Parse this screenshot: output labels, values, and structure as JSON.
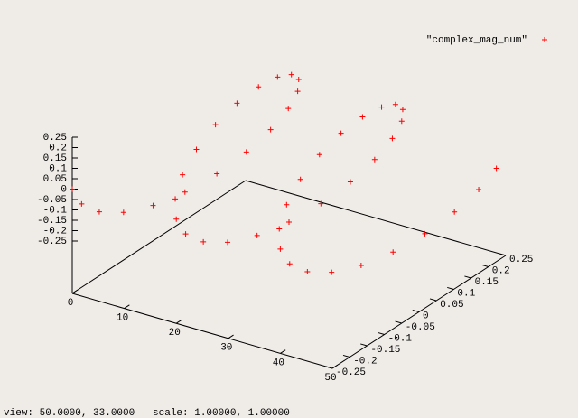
{
  "chart_data": {
    "type": "scatter3d",
    "series": [
      {
        "name": "\"complex_mag_num\"",
        "color": "#ff0000",
        "x": [
          0,
          1,
          2,
          3,
          4,
          5,
          6,
          7,
          8,
          9,
          10,
          11,
          12,
          13,
          14,
          15,
          16,
          17,
          18,
          19,
          20,
          21,
          22,
          23,
          24,
          25,
          26,
          27,
          28,
          29,
          30,
          31,
          32,
          33,
          34,
          35,
          36,
          37,
          38,
          39,
          40,
          41,
          42,
          43,
          44,
          45,
          46,
          47,
          48,
          49
        ],
        "y": [
          -0.25,
          -0.238,
          -0.202,
          -0.147,
          -0.077,
          0,
          0.077,
          0.147,
          0.202,
          0.238,
          0.25,
          0.238,
          0.202,
          0.147,
          0.077,
          0,
          -0.077,
          -0.147,
          -0.202,
          -0.238,
          -0.25,
          -0.238,
          -0.202,
          -0.147,
          -0.077,
          0,
          0.077,
          0.147,
          0.202,
          0.238,
          0.25,
          0.238,
          0.202,
          0.147,
          0.077,
          0,
          -0.077,
          -0.147,
          -0.202,
          -0.238,
          -0.25,
          -0.238,
          -0.202,
          -0.147,
          -0.077,
          0,
          0.077,
          0.147,
          0.202,
          0.238
        ],
        "z": [
          0,
          -0.077,
          -0.147,
          -0.202,
          -0.238,
          -0.25,
          -0.238,
          -0.202,
          -0.147,
          -0.077,
          0,
          0.077,
          0.147,
          0.202,
          0.238,
          0.25,
          0.238,
          0.202,
          0.147,
          0.077,
          0,
          -0.077,
          -0.147,
          -0.202,
          -0.238,
          -0.25,
          -0.238,
          -0.202,
          -0.147,
          -0.077,
          0,
          0.077,
          0.147,
          0.202,
          0.238,
          0.25,
          0.238,
          0.202,
          0.147,
          0.077,
          0,
          -0.077,
          -0.147,
          -0.202,
          -0.238,
          -0.25,
          -0.238,
          -0.202,
          -0.147,
          -0.077
        ]
      }
    ],
    "xlim": [
      0,
      50
    ],
    "xticks": [
      0,
      10,
      20,
      30,
      40,
      50
    ],
    "ylim": [
      -0.25,
      0.25
    ],
    "yticks": [
      -0.25,
      -0.2,
      -0.15,
      -0.1,
      -0.05,
      0,
      0.05,
      0.1,
      0.15,
      0.2,
      0.25
    ],
    "zlim": [
      -0.25,
      0.25
    ],
    "zticks": [
      -0.25,
      -0.2,
      -0.15,
      -0.1,
      -0.05,
      0,
      0.05,
      0.1,
      0.15,
      0.2,
      0.25
    ],
    "legend": "top-right"
  },
  "status_bar": "view: 50.0000, 33.0000   scale: 1.00000, 1.00000"
}
